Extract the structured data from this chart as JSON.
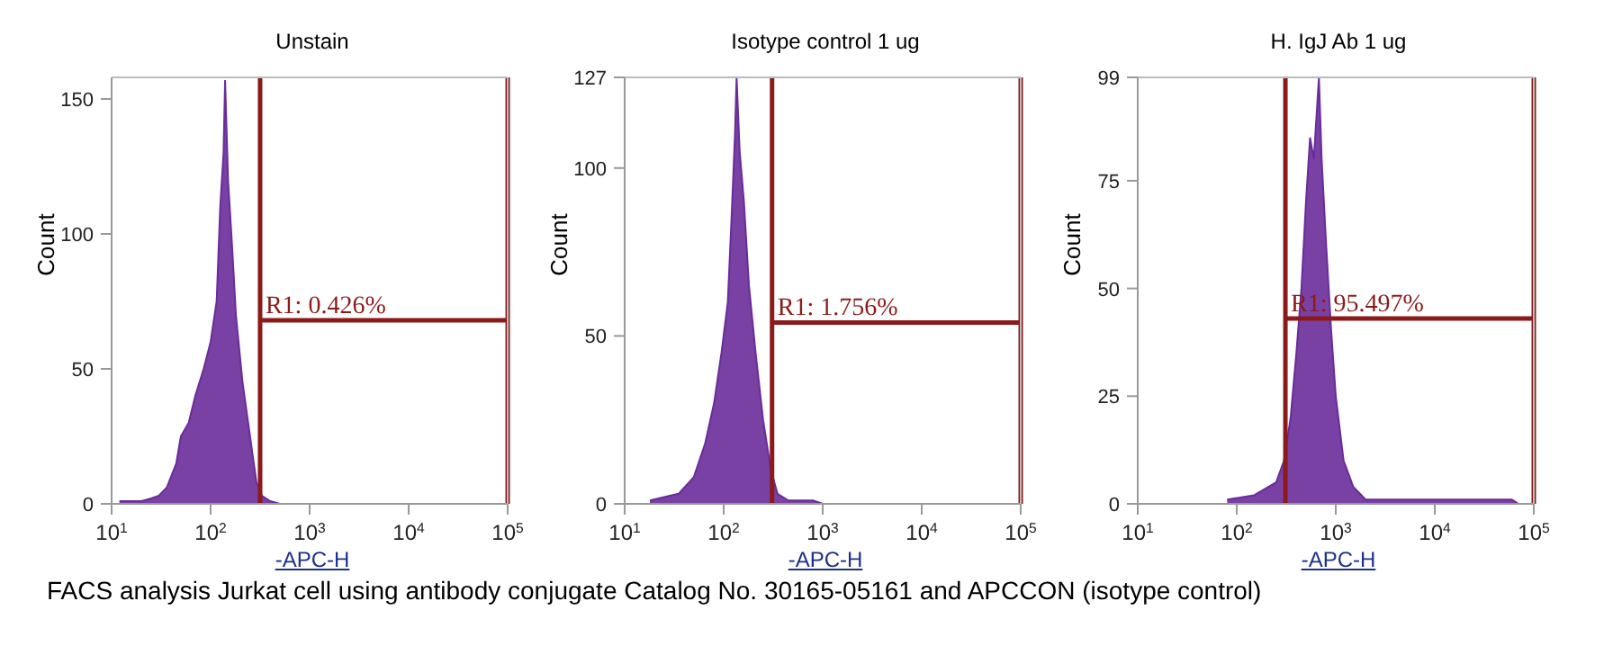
{
  "chart_data": [
    {
      "type": "area",
      "title": "Unstain",
      "xlabel": "-APC-H",
      "ylabel": "Count",
      "log": "x",
      "marker": "none",
      "xlim": [
        10,
        100000
      ],
      "xticks": [
        {
          "value": 10,
          "label": "10$^{1}$"
        },
        {
          "value": 100,
          "label": "10$^{2}$"
        },
        {
          "value": 1000,
          "label": "10$^{3}$"
        },
        {
          "value": 10000,
          "label": "10$^{4}$"
        },
        {
          "value": 100000,
          "label": "10$^{5}$"
        }
      ],
      "ylim": [
        0,
        158
      ],
      "yticks": [
        0,
        50,
        100,
        150
      ],
      "series": [
        {
          "color": "#6a2c9a",
          "x": [
            12,
            20,
            25,
            30,
            36,
            45,
            50,
            60,
            70,
            85,
            100,
            115,
            125,
            135,
            140,
            150,
            165,
            180,
            210,
            250,
            290,
            330,
            400,
            500
          ],
          "values": [
            1,
            1,
            2,
            3,
            6,
            15,
            25,
            30,
            40,
            50,
            60,
            75,
            110,
            130,
            157,
            120,
            95,
            70,
            45,
            25,
            8,
            3,
            1,
            0
          ]
        },
        {
          "type": "line",
          "color": "#8b1a1a",
          "x": [
            316,
            100000
          ],
          "values": [
            68,
            68
          ]
        }
      ],
      "ref_lines": [
        {
          "axis": "x",
          "value": 316,
          "color": "#8b1a1a"
        },
        {
          "axis": "x",
          "value": 100000,
          "color": "#8b1a1a"
        }
      ],
      "annotations": [
        {
          "text": "R1: 0.426%",
          "x": 316,
          "y": 68
        },
        "FACS analysis Jurkat cell using antibody conjugate Catalog No. 30165-05161 and APCCON (isotype control)"
      ]
    },
    {
      "type": "area",
      "title": "Isotype control 1 ug",
      "xlabel": "-APC-H",
      "ylabel": "Count",
      "log": "x",
      "marker": "none",
      "xlim": [
        10,
        100000
      ],
      "xticks": [
        {
          "value": 10,
          "label": "10$^{1}$"
        },
        {
          "value": 100,
          "label": "10$^{2}$"
        },
        {
          "value": 1000,
          "label": "10$^{3}$"
        },
        {
          "value": 10000,
          "label": "10$^{4}$"
        },
        {
          "value": 100000,
          "label": "10$^{5}$"
        }
      ],
      "ylim": [
        0,
        127
      ],
      "yticks": [
        0,
        50,
        100,
        127
      ],
      "series": [
        {
          "color": "#6a2c9a",
          "x": [
            18,
            25,
            35,
            50,
            65,
            80,
            95,
            110,
            120,
            130,
            135,
            145,
            160,
            180,
            210,
            250,
            300,
            350,
            450,
            800,
            1000
          ],
          "values": [
            1,
            2,
            3,
            8,
            18,
            30,
            45,
            60,
            85,
            110,
            127,
            105,
            90,
            65,
            45,
            25,
            10,
            3,
            1,
            1,
            0
          ]
        },
        {
          "type": "line",
          "color": "#8b1a1a",
          "x": [
            308,
            100000
          ],
          "values": [
            54,
            54
          ]
        }
      ],
      "ref_lines": [
        {
          "axis": "x",
          "value": 308,
          "color": "#8b1a1a"
        },
        {
          "axis": "x",
          "value": 100000,
          "color": "#8b1a1a"
        }
      ],
      "annotations": [
        {
          "text": "R1: 1.756%",
          "x": 308,
          "y": 54
        }
      ]
    },
    {
      "type": "area",
      "title": "H. IgJ Ab 1 ug",
      "xlabel": "-APC-H",
      "ylabel": "Count",
      "log": "x",
      "marker": "none",
      "xlim": [
        10,
        100000
      ],
      "xticks": [
        {
          "value": 10,
          "label": "10$^{1}$"
        },
        {
          "value": 100,
          "label": "10$^{2}$"
        },
        {
          "value": 1000,
          "label": "10$^{3}$"
        },
        {
          "value": 10000,
          "label": "10$^{4}$"
        },
        {
          "value": 100000,
          "label": "10$^{5}$"
        }
      ],
      "ylim": [
        0,
        99
      ],
      "yticks": [
        0,
        25,
        50,
        75,
        99
      ],
      "series": [
        {
          "color": "#6a2c9a",
          "x": [
            80,
            150,
            250,
            300,
            350,
            400,
            450,
            500,
            550,
            600,
            676,
            720,
            800,
            900,
            1000,
            1200,
            1500,
            2000,
            5000,
            20000,
            60000,
            70000
          ],
          "values": [
            1,
            2,
            5,
            10,
            20,
            35,
            50,
            70,
            85,
            80,
            99,
            80,
            60,
            40,
            25,
            10,
            4,
            1,
            1,
            1,
            1,
            0
          ]
        },
        {
          "type": "line",
          "color": "#8b1a1a",
          "x": [
            310,
            100000
          ],
          "values": [
            43,
            43
          ]
        }
      ],
      "ref_lines": [
        {
          "axis": "x",
          "value": 310,
          "color": "#8b1a1a"
        },
        {
          "axis": "x",
          "value": 100000,
          "color": "#8b1a1a"
        }
      ],
      "annotations": [
        {
          "text": "R1: 95.497%",
          "x": 310,
          "y": 43
        }
      ]
    }
  ]
}
